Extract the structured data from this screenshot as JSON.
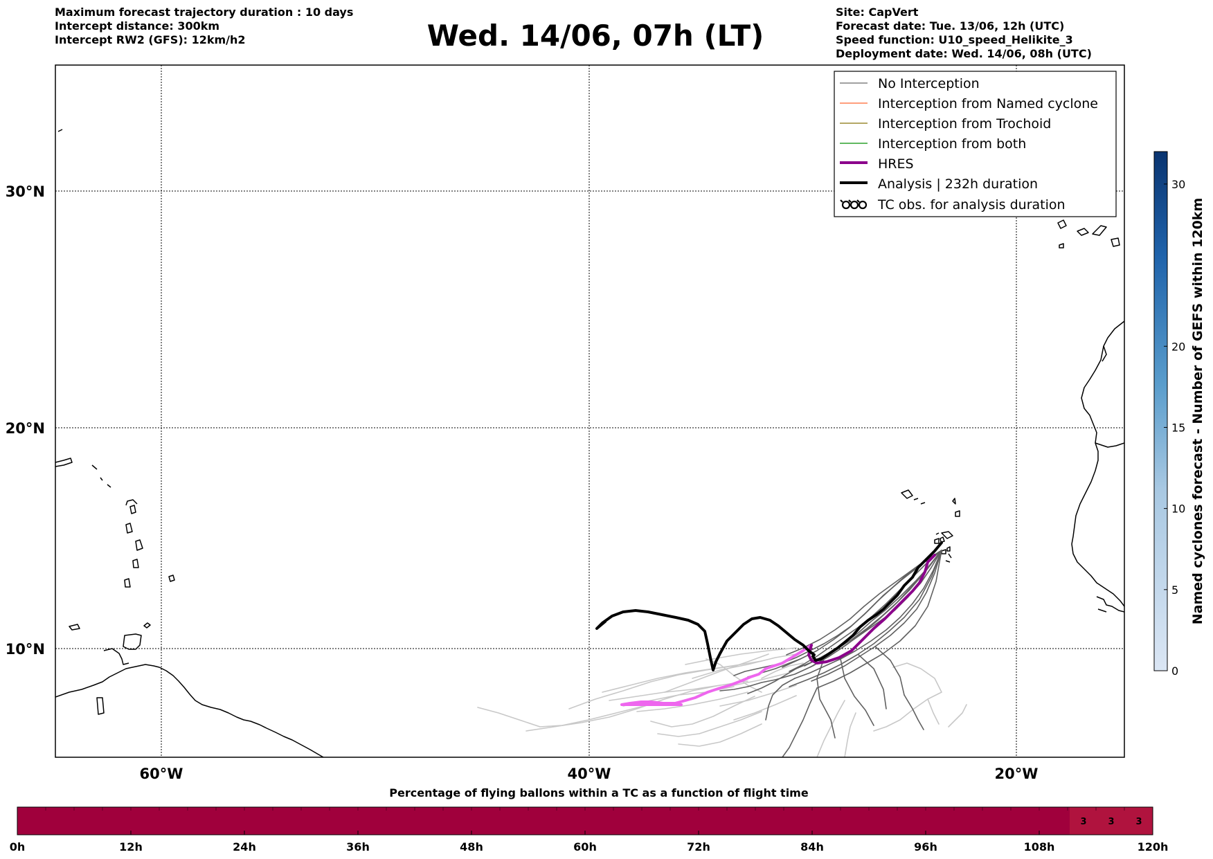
{
  "header": {
    "left_lines": [
      "Maximum forecast trajectory duration : 10 days",
      "Intercept distance: 300km",
      "Intercept RW2 (GFS):  12km/h2"
    ],
    "title": "Wed. 14/06, 07h (LT)",
    "right_lines": [
      "Site: CapVert",
      "Forecast date: Tue. 13/06, 12h (UTC)",
      "Speed function: U10_speed_Helikite_3",
      "Deployment date: Wed. 14/06, 08h (UTC)"
    ]
  },
  "map": {
    "lat_labels": [
      "30°N",
      "20°N",
      "10°N"
    ],
    "lon_labels": [
      "60°W",
      "40°W",
      "20°W"
    ],
    "legend": [
      {
        "label": "No Interception",
        "color": "#808080",
        "style": "thin"
      },
      {
        "label": "Interception from Named cyclone",
        "color": "#ff7f50",
        "style": "thin"
      },
      {
        "label": "Interception from Trochoid",
        "color": "#9a8a30",
        "style": "thin"
      },
      {
        "label": "Interception from both",
        "color": "#2ca02c",
        "style": "thin"
      },
      {
        "label": "HRES",
        "color": "#8b008b",
        "style": "thick"
      },
      {
        "label": "Analysis | 232h duration",
        "color": "#000000",
        "style": "thick"
      },
      {
        "label": "TC obs. for analysis duration",
        "color": "#000000",
        "style": "symbol"
      }
    ],
    "colors": {
      "analysis": "#000000",
      "hres": "#8b008b",
      "hres_early": "#ee66ee",
      "ensemble_dark": "#606060",
      "ensemble_light": "#c8c8c8"
    }
  },
  "colorbar": {
    "label": "Named cyclones forecast - Number of GEFS within 120km",
    "ticks": [
      "0",
      "5",
      "10",
      "15",
      "20",
      "30"
    ],
    "min": 0,
    "max": 32
  },
  "timebar": {
    "title": "Percentage of flying ballons within a TC as a function of flight time",
    "ticks": [
      "0h",
      "12h",
      "24h",
      "36h",
      "48h",
      "60h",
      "72h",
      "84h",
      "96h",
      "108h",
      "120h"
    ],
    "base_color": "#a0003c",
    "late_color": "#b0133e",
    "late_values": [
      "3",
      "3",
      "3"
    ]
  }
}
